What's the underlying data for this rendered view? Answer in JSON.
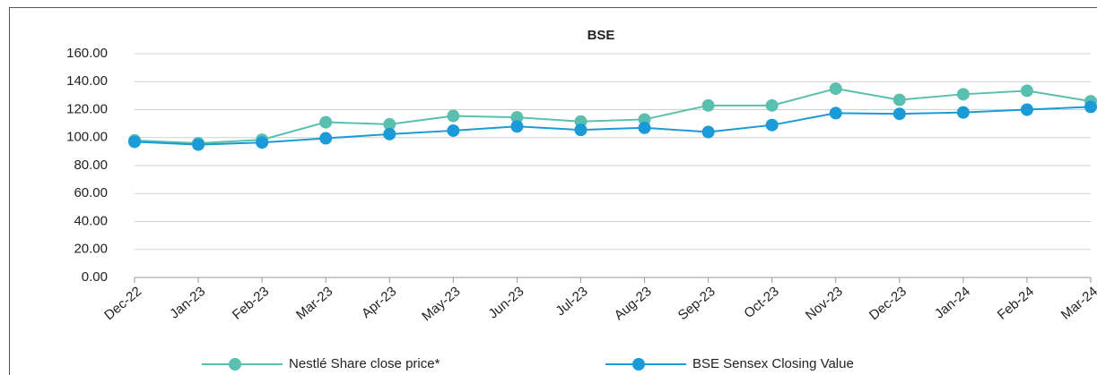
{
  "chart_data": {
    "type": "line",
    "title": "BSE",
    "categories": [
      "Dec-22",
      "Jan-23",
      "Feb-23",
      "Mar-23",
      "Apr-23",
      "May-23",
      "Jun-23",
      "Jul-23",
      "Aug-23",
      "Sep-23",
      "Oct-23",
      "Nov-23",
      "Dec-23",
      "Jan-24",
      "Feb-24",
      "Mar-24"
    ],
    "series": [
      {
        "name": "Nestlé Share close price*",
        "color": "#5bbfb0",
        "values": [
          98,
          96,
          98.5,
          111,
          109.5,
          115.5,
          114.5,
          111.5,
          113,
          123,
          123,
          135,
          127,
          131,
          133.5,
          126
        ]
      },
      {
        "name": "BSE Sensex Closing Value",
        "color": "#1a9ad6",
        "values": [
          97,
          95,
          96.5,
          99.5,
          102.5,
          105,
          108,
          105.5,
          107,
          104,
          109,
          117.5,
          117,
          118,
          120,
          122
        ]
      }
    ],
    "ylim": [
      0,
      160
    ],
    "yticks": [
      {
        "value": 0,
        "label": "0.00"
      },
      {
        "value": 20,
        "label": "20.00"
      },
      {
        "value": 40,
        "label": "40.00"
      },
      {
        "value": 60,
        "label": "60.00"
      },
      {
        "value": 80,
        "label": "80.00"
      },
      {
        "value": 100,
        "label": "100.00"
      },
      {
        "value": 120,
        "label": "120.00"
      },
      {
        "value": 140,
        "label": "140.00"
      },
      {
        "value": 160,
        "label": "160.00"
      }
    ],
    "grid": true,
    "legend": "bottom"
  }
}
